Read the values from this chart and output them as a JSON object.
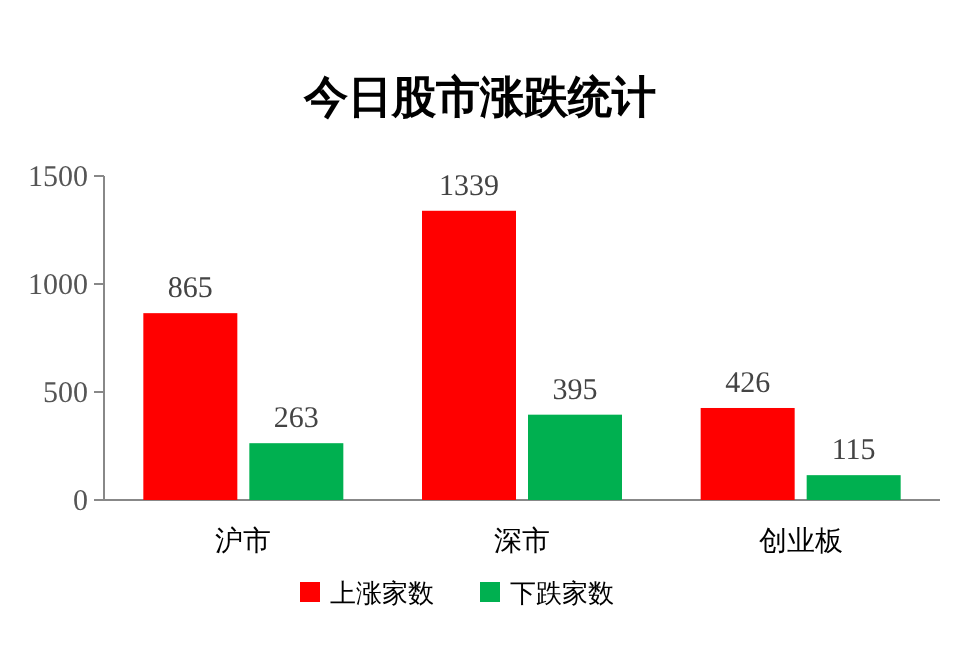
{
  "chart_data": {
    "type": "bar",
    "title": "今日股市涨跌统计",
    "categories": [
      "沪市",
      "深市",
      "创业板"
    ],
    "series": [
      {
        "name": "上涨家数",
        "color": "#ff0000",
        "values": [
          865,
          1339,
          426
        ]
      },
      {
        "name": "下跌家数",
        "color": "#00b050",
        "values": [
          263,
          395,
          115
        ]
      }
    ],
    "ylim": [
      0,
      1500
    ],
    "yticks": [
      0,
      500,
      1000,
      1500
    ],
    "data_labels": true,
    "legend": "bottom"
  }
}
